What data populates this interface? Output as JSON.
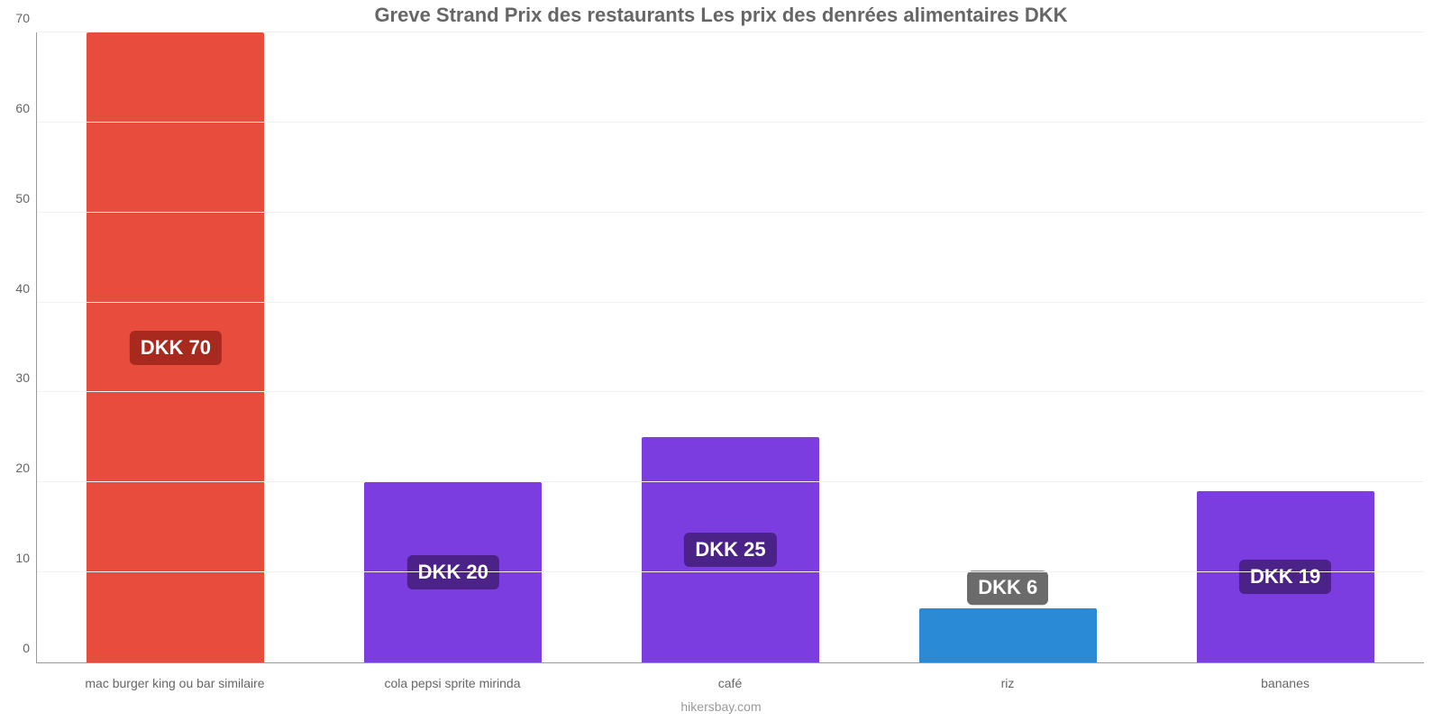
{
  "chart": {
    "type": "bar",
    "title": "Greve Strand Prix des restaurants Les prix des denrées alimentaires DKK",
    "title_fontsize": 22,
    "title_color": "#666666",
    "footer": "hikersbay.com",
    "footer_color": "#999999",
    "background_color": "#ffffff",
    "axis_color": "#999999",
    "grid_color": "#f1f1f1",
    "ylim": [
      0,
      70
    ],
    "ytick_step": 10,
    "ytick_color": "#666666",
    "ytick_fontsize": 14,
    "xlabel_color": "#666666",
    "xlabel_fontsize": 14,
    "bar_width_pct": 64,
    "value_label_fontsize": 22,
    "categories": [
      "mac burger king ou bar similaire",
      "cola pepsi sprite mirinda",
      "café",
      "riz",
      "bananes"
    ],
    "values": [
      70,
      20,
      25,
      6,
      19
    ],
    "value_labels": [
      "DKK 70",
      "DKK 20",
      "DKK 25",
      "DKK 6",
      "DKK 19"
    ],
    "bar_colors": [
      "#e74c3c",
      "#7b3ce0",
      "#7b3ce0",
      "#2a8ad6",
      "#7b3ce0"
    ],
    "badge_colors": [
      "#a82a1f",
      "#4a2288",
      "#4a2288",
      "#6b6b6b",
      "#4a2288"
    ],
    "yticks": [
      {
        "v": 0,
        "label": "0"
      },
      {
        "v": 10,
        "label": "10"
      },
      {
        "v": 20,
        "label": "20"
      },
      {
        "v": 30,
        "label": "30"
      },
      {
        "v": 40,
        "label": "40"
      },
      {
        "v": 50,
        "label": "50"
      },
      {
        "v": 60,
        "label": "60"
      },
      {
        "v": 70,
        "label": "70"
      }
    ]
  }
}
